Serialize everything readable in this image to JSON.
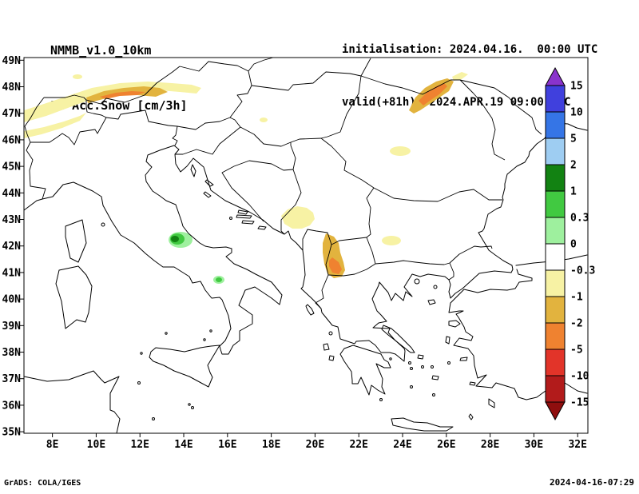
{
  "header": {
    "model_name": "NMMB_v1.0_10km",
    "product_name": "3h Acc.Snow [cm/3h]",
    "initialisation": "initialisation: 2024.04.16.  00:00 UTC",
    "valid": "valid(+81h): 2024.APR.19 09:00 UTC"
  },
  "footer": {
    "credit": "GrADS: COLA/IGES",
    "timestamp": "2024-04-16-07:29"
  },
  "axes": {
    "lat_labels": [
      "49N",
      "48N",
      "47N",
      "46N",
      "45N",
      "44N",
      "43N",
      "42N",
      "41N",
      "40N",
      "39N",
      "38N",
      "37N",
      "36N",
      "35N"
    ],
    "lon_labels": [
      "8E",
      "10E",
      "12E",
      "14E",
      "16E",
      "18E",
      "20E",
      "22E",
      "24E",
      "26E",
      "28E",
      "30E",
      "32E"
    ]
  },
  "colorbar": {
    "tick_labels": [
      "15",
      "10",
      "5",
      "2",
      "1",
      "0.3",
      "0",
      "-0.3",
      "-1",
      "-2",
      "-5",
      "-10",
      "-15"
    ],
    "colors_top_to_bottom": [
      "#8a33cc",
      "#4040dd",
      "#3575e6",
      "#9ecdf2",
      "#128212",
      "#41c941",
      "#9ef09e",
      "#ffffff",
      "#f7f2a4",
      "#e2b33e",
      "#ef8230",
      "#e23429",
      "#b21b1b",
      "#8f0e0e"
    ]
  },
  "chart_data": {
    "type": "heatmap",
    "title": "3h Acc.Snow [cm/3h]",
    "model": "NMMB_v1.0_10km",
    "init_time": "2024.04.16 00:00 UTC",
    "valid_time": "2024.APR.19 09:00 UTC (+81h)",
    "lon_ticks_deg_e": [
      8,
      10,
      12,
      14,
      16,
      18,
      20,
      22,
      24,
      26,
      28,
      30,
      32
    ],
    "lat_ticks_deg_n": [
      35,
      36,
      37,
      38,
      39,
      40,
      41,
      42,
      43,
      44,
      45,
      46,
      47,
      48,
      49
    ],
    "contour_levels_cm": [
      -15,
      -10,
      -5,
      -2,
      -1,
      -0.3,
      0,
      0.3,
      1,
      2,
      5,
      10,
      15
    ],
    "legend_position": "right",
    "grid": false,
    "shaded_features": [
      {
        "region": "Alps ridge band (~46.8-47.8N, 7-16E)",
        "value_cm": "-2 to -0.3, gold core near -2"
      },
      {
        "region": "NE Carpathians (~47-48N, 24.5-26.5E)",
        "value_cm": "-5 to -1"
      },
      {
        "region": "S Transylvania (~46N, 23.5-24.5E)",
        "value_cm": "-1 to -0.3"
      },
      {
        "region": "Montenegro / Kosovo highlands (~42.6-43.3N, 18.6-20.4E)",
        "value_cm": "-1 to -0.3"
      },
      {
        "region": "Albania / N Macedonia mountains (~41-42.3N, 20.3-21.3E)",
        "value_cm": "-5 to -1"
      },
      {
        "region": "W Bulgaria (~42.3N, 23-24E)",
        "value_cm": "-1 to -0.3"
      },
      {
        "region": "Central Apennines, Abruzzo (~42.3N, 13.3-14E)",
        "value_cm": "+0.3 to +2, dark green core"
      },
      {
        "region": "S Apennines (~40.7N, 15.6E)",
        "value_cm": "+0.3 to +1"
      }
    ]
  }
}
